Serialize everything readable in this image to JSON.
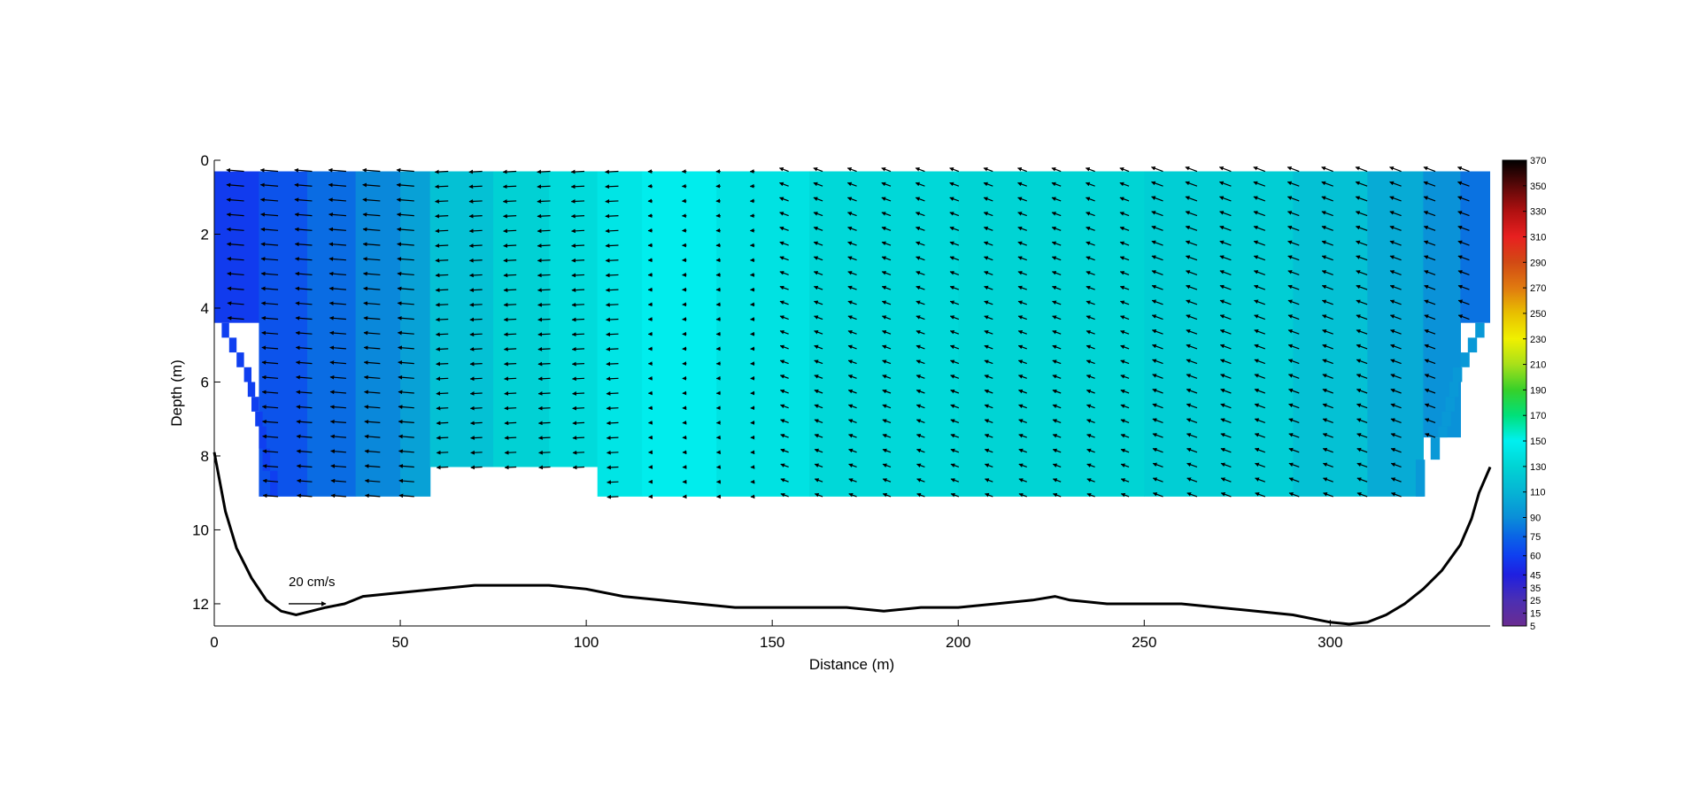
{
  "chart_data": {
    "type": "heatmap",
    "title": "",
    "xlabel": "Distance (m)",
    "ylabel": "Depth (m)",
    "xlim": [
      0,
      343
    ],
    "ylim": [
      0,
      12.6
    ],
    "y_reversed": true,
    "grid": false,
    "x_ticks": [
      0,
      50,
      100,
      150,
      200,
      250,
      300
    ],
    "x_tick_labels": [
      "0",
      "50",
      "100",
      "150",
      "200",
      "250",
      "300"
    ],
    "y_ticks": [
      0,
      2,
      4,
      6,
      8,
      10,
      12
    ],
    "y_tick_labels": [
      "0",
      "2",
      "4",
      "6",
      "8",
      "10",
      "12"
    ],
    "colorbar": {
      "ticks": [
        5,
        15,
        25,
        35,
        45,
        60,
        75,
        90,
        110,
        130,
        150,
        170,
        190,
        210,
        230,
        250,
        270,
        290,
        310,
        330,
        350,
        370
      ],
      "tick_labels": [
        "5",
        "15",
        "25",
        "35",
        "45",
        "60",
        "75",
        "90",
        "110",
        "130",
        "150",
        "170",
        "190",
        "210",
        "230",
        "250",
        "270",
        "290",
        "310",
        "330",
        "350",
        "370"
      ],
      "stops": [
        {
          "value": 5,
          "color": "#6a2c91"
        },
        {
          "value": 25,
          "color": "#4b2fb3"
        },
        {
          "value": 45,
          "color": "#1f1fe0"
        },
        {
          "value": 60,
          "color": "#0f3ff0"
        },
        {
          "value": 75,
          "color": "#0a64e6"
        },
        {
          "value": 90,
          "color": "#0a8ed8"
        },
        {
          "value": 110,
          "color": "#06b4d4"
        },
        {
          "value": 130,
          "color": "#00d4d4"
        },
        {
          "value": 150,
          "color": "#00f0f0"
        },
        {
          "value": 170,
          "color": "#00e07a"
        },
        {
          "value": 190,
          "color": "#37d02a"
        },
        {
          "value": 210,
          "color": "#a8e01a"
        },
        {
          "value": 230,
          "color": "#f0f000"
        },
        {
          "value": 250,
          "color": "#e8c000"
        },
        {
          "value": 270,
          "color": "#e07a10"
        },
        {
          "value": 290,
          "color": "#d24a14"
        },
        {
          "value": 310,
          "color": "#e82020"
        },
        {
          "value": 330,
          "color": "#b01010"
        },
        {
          "value": 350,
          "color": "#5a0808"
        },
        {
          "value": 370,
          "color": "#000000"
        }
      ]
    },
    "velocity_columns": [
      {
        "x_start": 0,
        "x_end": 12,
        "value": 58,
        "max_depth": 4.4
      },
      {
        "x_start": 12,
        "x_end": 25,
        "value": 68,
        "max_depth": 9.1
      },
      {
        "x_start": 25,
        "x_end": 38,
        "value": 78,
        "max_depth": 9.1
      },
      {
        "x_start": 38,
        "x_end": 50,
        "value": 88,
        "max_depth": 9.1
      },
      {
        "x_start": 50,
        "x_end": 58,
        "value": 100,
        "max_depth": 9.1
      },
      {
        "x_start": 58,
        "x_end": 75,
        "value": 118,
        "max_depth": 8.3
      },
      {
        "x_start": 75,
        "x_end": 90,
        "value": 128,
        "max_depth": 8.3
      },
      {
        "x_start": 90,
        "x_end": 103,
        "value": 135,
        "max_depth": 8.3
      },
      {
        "x_start": 103,
        "x_end": 115,
        "value": 142,
        "max_depth": 9.1
      },
      {
        "x_start": 115,
        "x_end": 135,
        "value": 148,
        "max_depth": 9.1
      },
      {
        "x_start": 135,
        "x_end": 160,
        "value": 140,
        "max_depth": 9.1
      },
      {
        "x_start": 160,
        "x_end": 200,
        "value": 133,
        "max_depth": 9.1
      },
      {
        "x_start": 200,
        "x_end": 250,
        "value": 130,
        "max_depth": 9.1
      },
      {
        "x_start": 250,
        "x_end": 290,
        "value": 126,
        "max_depth": 9.1
      },
      {
        "x_start": 290,
        "x_end": 310,
        "value": 118,
        "max_depth": 9.1
      },
      {
        "x_start": 310,
        "x_end": 325,
        "value": 105,
        "max_depth": 9.1
      },
      {
        "x_start": 325,
        "x_end": 335,
        "value": 92,
        "max_depth": 7.5
      },
      {
        "x_start": 335,
        "x_end": 343,
        "value": 80,
        "max_depth": 4.4
      }
    ],
    "data_top_depth": 0.3,
    "bed_profile": {
      "x": [
        0,
        3,
        6,
        10,
        14,
        18,
        22,
        26,
        30,
        35,
        40,
        50,
        60,
        70,
        80,
        90,
        100,
        110,
        120,
        130,
        140,
        150,
        160,
        170,
        180,
        190,
        200,
        210,
        220,
        226,
        230,
        240,
        250,
        260,
        270,
        280,
        290,
        300,
        305,
        310,
        315,
        320,
        325,
        330,
        335,
        338,
        340,
        343
      ],
      "y": [
        7.9,
        9.5,
        10.5,
        11.3,
        11.9,
        12.2,
        12.3,
        12.2,
        12.1,
        12.0,
        11.8,
        11.7,
        11.6,
        11.5,
        11.5,
        11.5,
        11.6,
        11.8,
        11.9,
        12.0,
        12.1,
        12.1,
        12.1,
        12.1,
        12.2,
        12.1,
        12.1,
        12.0,
        11.9,
        11.8,
        11.9,
        12.0,
        12.0,
        12.0,
        12.1,
        12.2,
        12.3,
        12.5,
        12.55,
        12.5,
        12.3,
        12.0,
        11.6,
        11.1,
        10.4,
        9.7,
        9.0,
        8.3
      ]
    },
    "vector_field": {
      "x_spacing": 9.15,
      "x_start": 8,
      "depth_spacing": 0.4,
      "depth_start": 0.3,
      "flow_direction": "leftward",
      "annotation": "20 cm/s",
      "reference_vector_length": 20,
      "reference_position_x": 20,
      "reference_position_y": 12.0
    }
  }
}
